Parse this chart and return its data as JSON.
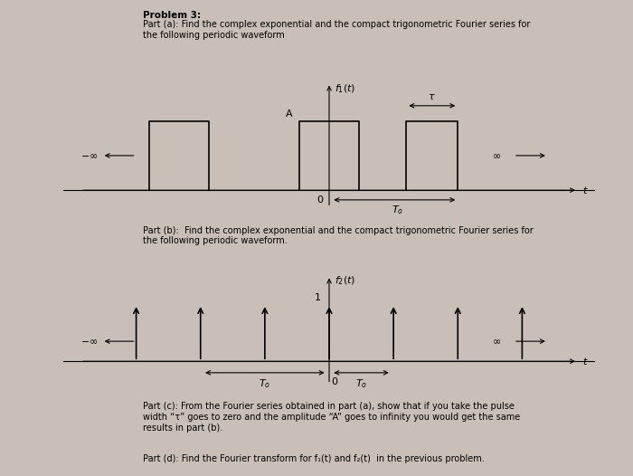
{
  "background_color": "#c8c0b8",
  "title_text": "Problem 3:",
  "part_a_text": "Part (a): Find the complex exponential and the compact trigonometric Fourier series for\nthe following periodic waveform",
  "part_b_text": "Part (b):  Find the complex exponential and the compact trigonometric Fourier series for\nthe following periodic waveform.",
  "part_c_text": "Part (c): From the Fourier series obtained in part (a), show that if you take the pulse\nwidth “τ” goes to zero and the amplitude “A” goes to infinity you would get the same\nresults in part (b).",
  "part_d_text": "Part (d): Find the Fourier transform for f₁(t) and f₂(t)  in the previous problem.",
  "fig_width": 7.0,
  "fig_height": 5.26,
  "text_color": "#000000",
  "plot1_ylabel": "$f_1(t)$",
  "plot1_xlabel": "$t$",
  "plot2_ylabel": "$f_2(t)$",
  "plot2_xlabel": "$t$",
  "label_A": "A",
  "label_tau": "$\\tau$",
  "label_T0": "$T_o$",
  "label_1": "1",
  "label_0": "0",
  "label_neg_inf": "$-\\infty$",
  "label_pos_inf": "$\\infty$"
}
